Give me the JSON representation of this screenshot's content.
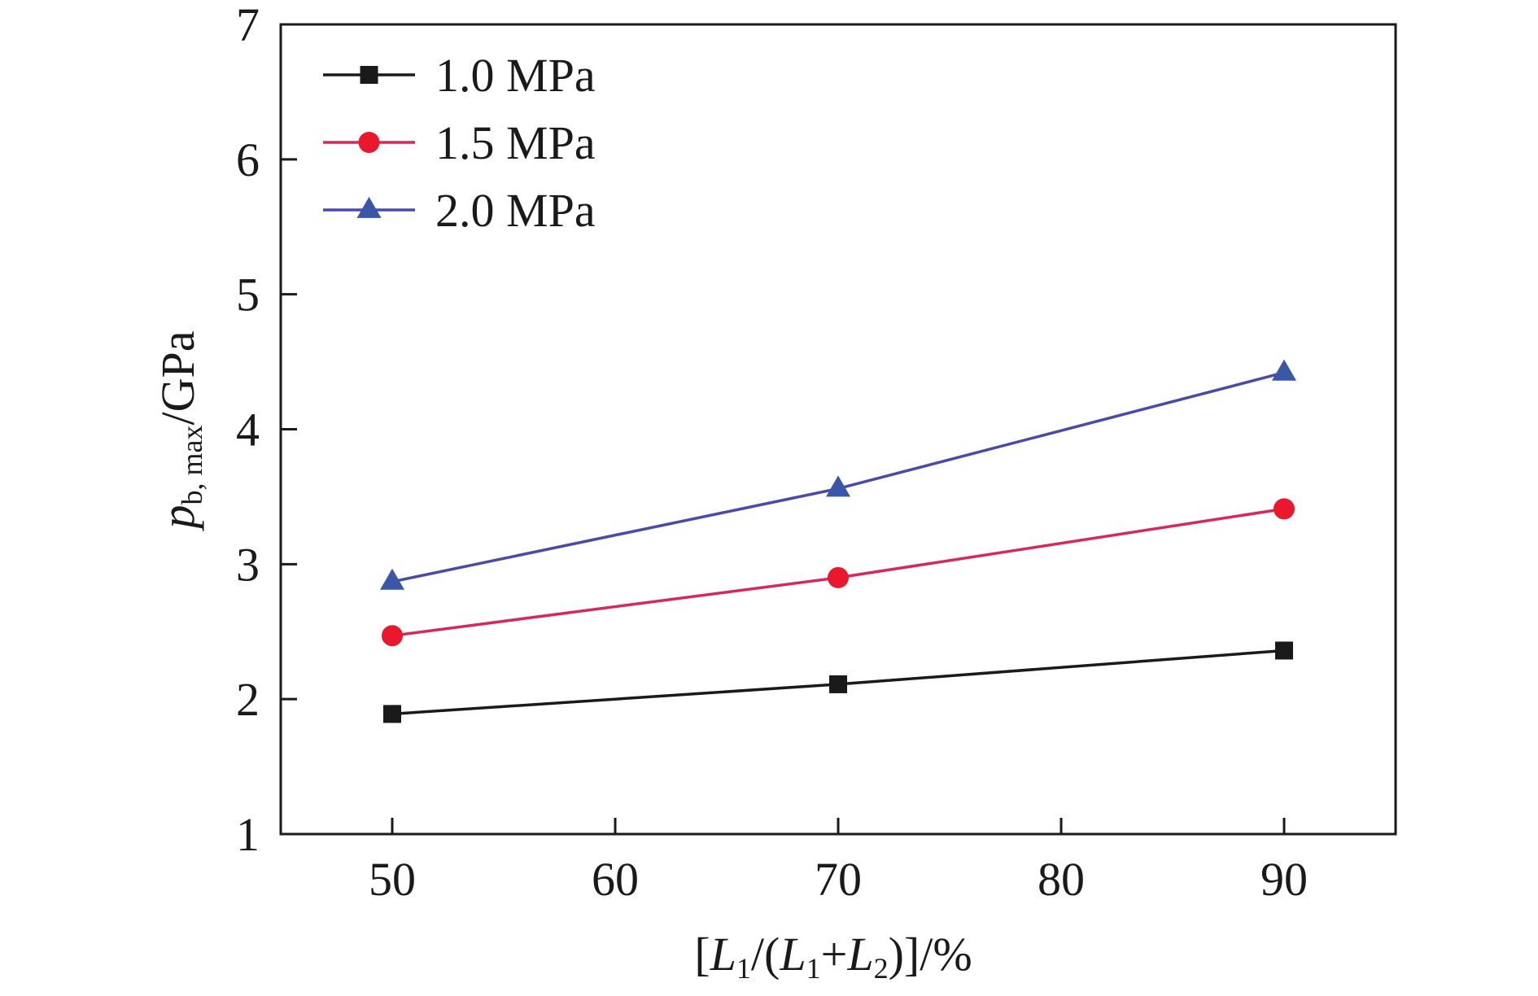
{
  "chart_data": {
    "type": "line",
    "x": [
      50,
      70,
      90
    ],
    "series": [
      {
        "name": "1.0 MPa",
        "values": [
          1.89,
          2.11,
          2.36
        ],
        "color": "#1a1a1a",
        "marker": "square"
      },
      {
        "name": "1.5 MPa",
        "values": [
          2.47,
          2.9,
          3.41
        ],
        "color": "#e8192c",
        "line_color": "#d6285a",
        "marker": "circle"
      },
      {
        "name": "2.0 MPa",
        "values": [
          2.87,
          3.56,
          4.42
        ],
        "color": "#3a57a7",
        "line_color": "#4a4aa8",
        "marker": "triangle"
      }
    ],
    "xlabel": {
      "prefix": "[",
      "L": "L",
      "sub1": "1",
      "mid1": "/(",
      "mid2": "+",
      "sub2": "2",
      "suffix": ")]/%"
    },
    "ylabel": {
      "p": "p",
      "sub": "b, max",
      "unit": "/GPa"
    },
    "xlim": [
      45,
      95
    ],
    "ylim": [
      1,
      7
    ],
    "x_ticks": [
      "50",
      "60",
      "70",
      "80",
      "90"
    ],
    "x_tick_values": [
      50,
      60,
      70,
      80,
      90
    ],
    "y_ticks": [
      "1",
      "2",
      "3",
      "4",
      "5",
      "6",
      "7"
    ],
    "y_tick_values": [
      1,
      2,
      3,
      4,
      5,
      6,
      7
    ],
    "grid": false,
    "legend": "top-left"
  }
}
